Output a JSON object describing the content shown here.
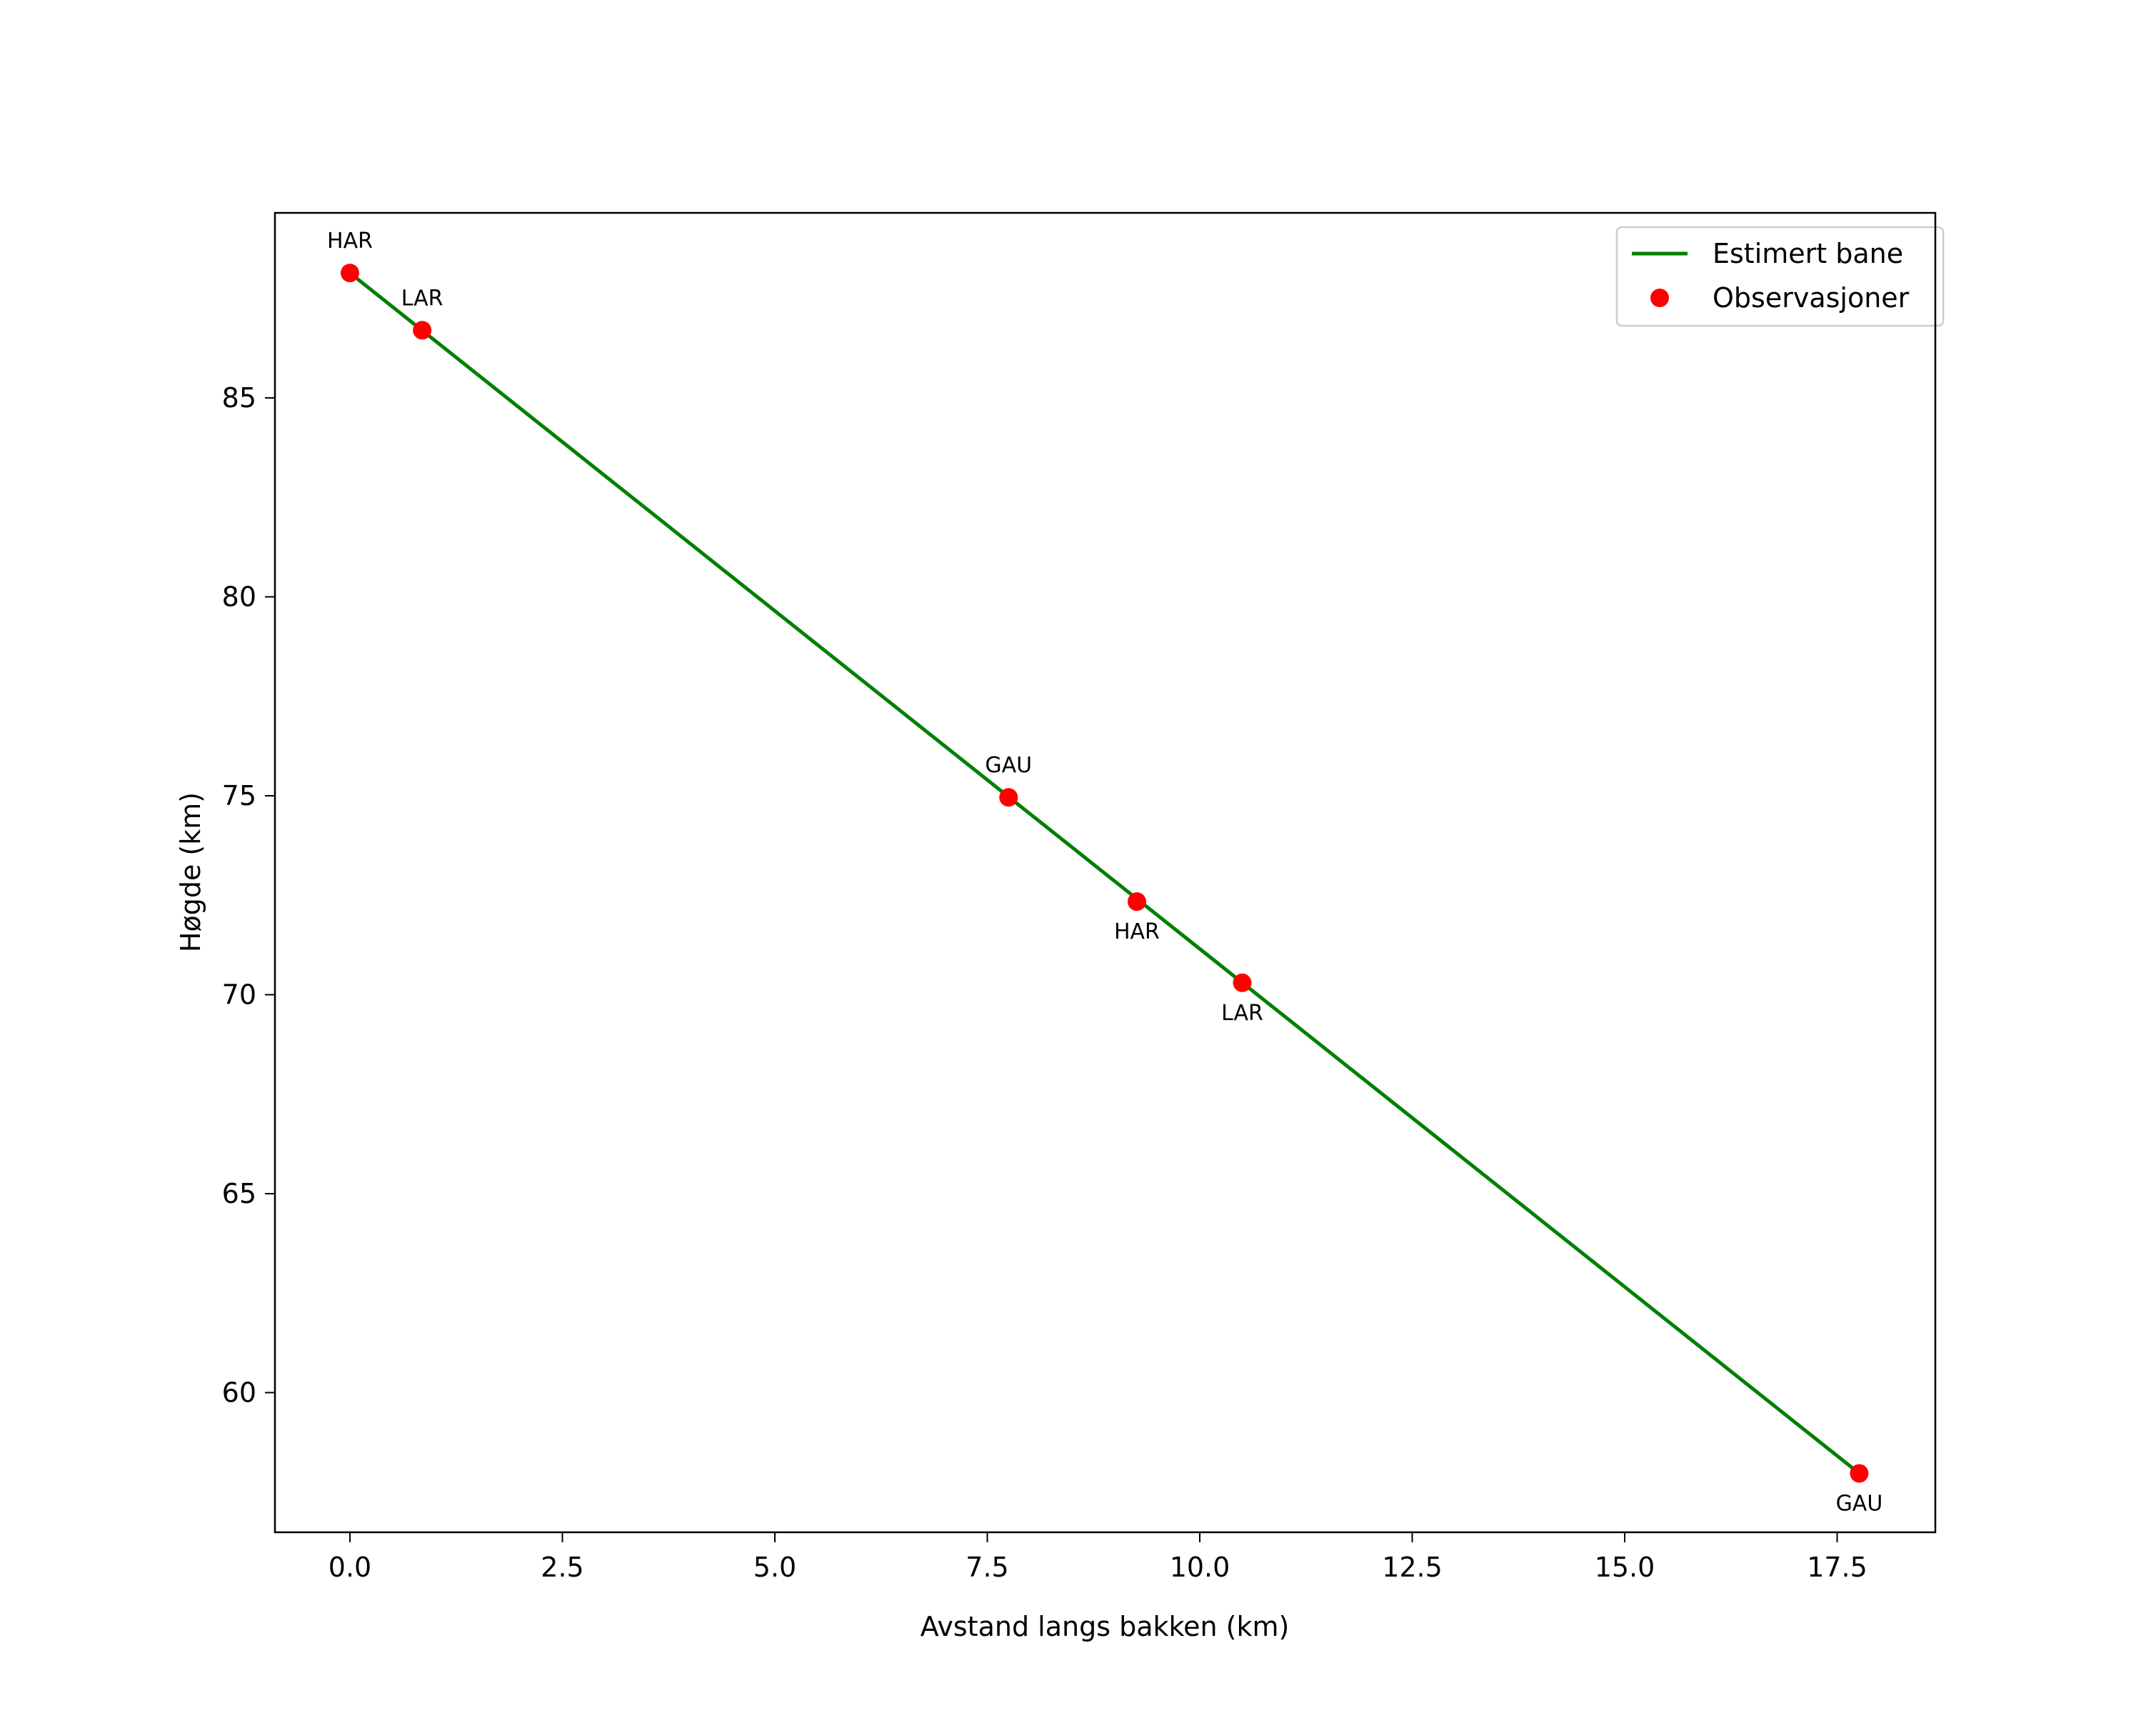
{
  "chart_data": {
    "type": "line",
    "title": "",
    "xlabel": "Avstand langs bakken (km)",
    "ylabel": "Høgde (km)",
    "xlim": [
      -0.9,
      18.6
    ],
    "ylim": [
      56.6,
      89.7
    ],
    "xticks": [
      0.0,
      2.5,
      5.0,
      7.5,
      10.0,
      12.5,
      15.0,
      17.5
    ],
    "xtick_labels": [
      "0.0",
      "2.5",
      "5.0",
      "7.5",
      "10.0",
      "12.5",
      "15.0",
      "17.5"
    ],
    "yticks": [
      60,
      65,
      70,
      75,
      80,
      85
    ],
    "ytick_labels": [
      "60",
      "65",
      "70",
      "75",
      "80",
      "85"
    ],
    "grid": false,
    "legend_position": "upper right",
    "series": [
      {
        "name": "Estimert bane",
        "type": "line",
        "color": "#008000",
        "x": [
          0.0,
          17.76
        ],
        "y": [
          88.14,
          57.97
        ]
      },
      {
        "name": "Observasjoner",
        "type": "scatter",
        "color": "#ff0000",
        "points": [
          {
            "label": "HAR",
            "x": 0.0,
            "y": 88.14,
            "label_pos": "above"
          },
          {
            "label": "LAR",
            "x": 0.85,
            "y": 86.7,
            "label_pos": "above"
          },
          {
            "label": "GAU",
            "x": 7.75,
            "y": 74.96,
            "label_pos": "above"
          },
          {
            "label": "HAR",
            "x": 9.26,
            "y": 72.34,
            "label_pos": "below"
          },
          {
            "label": "LAR",
            "x": 10.5,
            "y": 70.3,
            "label_pos": "below"
          },
          {
            "label": "GAU",
            "x": 17.76,
            "y": 57.97,
            "label_pos": "below"
          }
        ]
      }
    ]
  },
  "legend": {
    "items": [
      {
        "label": "Estimert bane",
        "marker": "line",
        "color": "#008000"
      },
      {
        "label": "Observasjoner",
        "marker": "dot",
        "color": "#ff0000"
      }
    ]
  }
}
